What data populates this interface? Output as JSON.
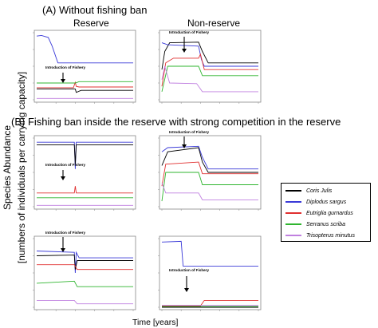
{
  "figure": {
    "section_a": "(A)  Without fishing ban",
    "section_b": "(B) Fishing ban inside the reserve with strong competition in the reserve",
    "col_reserve": "Reserve",
    "col_nonreserve": "Non-reserve",
    "ylabel_line1": "Species Abundance",
    "ylabel_line2": "[numbers of individuals per carrying capacity]",
    "xlabel": "Time [years]"
  },
  "colors": {
    "Coris Julis": "#000000",
    "Diplodus sargus": "#3a3ad8",
    "Eutriglia gurnardus": "#e03030",
    "Serranus scriba": "#2fb52f",
    "Trisopterus minutus": "#c080e0"
  },
  "chart_data": [
    {
      "type": "line",
      "panel": "A-reserve",
      "annotation": "Introduction of Fishery",
      "event_x": 2000,
      "xlim": [
        0,
        5000
      ],
      "ylim": [
        0,
        1
      ],
      "series": [
        {
          "name": "Diplodus sargus",
          "points": [
            [
              0,
              0.95
            ],
            [
              250,
              0.96
            ],
            [
              600,
              0.93
            ],
            [
              800,
              0.8
            ],
            [
              1100,
              0.55
            ],
            [
              5000,
              0.55
            ]
          ]
        },
        {
          "name": "Eutriglia gurnardus",
          "points": [
            [
              0,
              0.18
            ],
            [
              1900,
              0.18
            ],
            [
              2000,
              0.26
            ],
            [
              2050,
              0.2
            ],
            [
              2200,
              0.19
            ],
            [
              5000,
              0.19
            ]
          ]
        },
        {
          "name": "Serranus scriba",
          "points": [
            [
              0,
              0.25
            ],
            [
              2000,
              0.25
            ],
            [
              2200,
              0.27
            ],
            [
              5000,
              0.27
            ]
          ]
        },
        {
          "name": "Coris Julis",
          "points": [
            [
              0,
              0.16
            ],
            [
              2000,
              0.16
            ],
            [
              2050,
              0.11
            ],
            [
              2300,
              0.14
            ],
            [
              5000,
              0.14
            ]
          ]
        },
        {
          "name": "Trisopterus minutus",
          "points": [
            [
              0,
              0.02
            ],
            [
              5000,
              0.02
            ]
          ]
        }
      ]
    },
    {
      "type": "line",
      "panel": "A-nonreserve",
      "annotation": "Introduction of Fishery",
      "event_x": 2000,
      "xlim": [
        0,
        5000
      ],
      "ylim": [
        0,
        1
      ],
      "series": [
        {
          "name": "Coris Julis",
          "points": [
            [
              0,
              0.45
            ],
            [
              150,
              0.72
            ],
            [
              400,
              0.85
            ],
            [
              1900,
              0.86
            ],
            [
              2100,
              0.72
            ],
            [
              2400,
              0.55
            ],
            [
              5000,
              0.55
            ]
          ]
        },
        {
          "name": "Diplodus sargus",
          "points": [
            [
              0,
              0.85
            ],
            [
              300,
              0.82
            ],
            [
              1900,
              0.8
            ],
            [
              2050,
              0.6
            ],
            [
              2200,
              0.5
            ],
            [
              5000,
              0.5
            ]
          ]
        },
        {
          "name": "Eutriglia gurnardus",
          "points": [
            [
              0,
              0.2
            ],
            [
              200,
              0.55
            ],
            [
              600,
              0.62
            ],
            [
              1900,
              0.62
            ],
            [
              2000,
              0.68
            ],
            [
              2200,
              0.45
            ],
            [
              5000,
              0.45
            ]
          ]
        },
        {
          "name": "Serranus scriba",
          "points": [
            [
              0,
              0.12
            ],
            [
              300,
              0.5
            ],
            [
              1900,
              0.5
            ],
            [
              2100,
              0.36
            ],
            [
              5000,
              0.36
            ]
          ]
        },
        {
          "name": "Trisopterus minutus",
          "points": [
            [
              0,
              0.3
            ],
            [
              150,
              0.5
            ],
            [
              400,
              0.25
            ],
            [
              1800,
              0.24
            ],
            [
              2100,
              0.12
            ],
            [
              5000,
              0.12
            ]
          ]
        }
      ]
    },
    {
      "type": "line",
      "panel": "B1-reserve",
      "annotation": "Introduction of Fishery",
      "event_x": 2000,
      "xlim": [
        0,
        5000
      ],
      "ylim": [
        0,
        1
      ],
      "series": [
        {
          "name": "Diplodus sargus",
          "points": [
            [
              0,
              0.94
            ],
            [
              1950,
              0.94
            ],
            [
              2000,
              0.55
            ],
            [
              2050,
              0.94
            ],
            [
              5000,
              0.94
            ]
          ]
        },
        {
          "name": "Coris Julis",
          "points": [
            [
              0,
              0.9
            ],
            [
              1950,
              0.9
            ],
            [
              2000,
              0.62
            ],
            [
              2050,
              0.9
            ],
            [
              5000,
              0.9
            ]
          ]
        },
        {
          "name": "Eutriglia gurnardus",
          "points": [
            [
              0,
              0.2
            ],
            [
              1950,
              0.2
            ],
            [
              2000,
              0.3
            ],
            [
              2050,
              0.2
            ],
            [
              5000,
              0.2
            ]
          ]
        },
        {
          "name": "Serranus scriba",
          "points": [
            [
              0,
              0.13
            ],
            [
              5000,
              0.13
            ]
          ]
        },
        {
          "name": "Trisopterus minutus",
          "points": [
            [
              0,
              0.02
            ],
            [
              5000,
              0.02
            ]
          ]
        }
      ]
    },
    {
      "type": "line",
      "panel": "B1-nonreserve",
      "annotation": "Introduction of Fishery",
      "event_x": 2000,
      "xlim": [
        0,
        5000
      ],
      "ylim": [
        0,
        1
      ],
      "series": [
        {
          "name": "Diplodus sargus",
          "points": [
            [
              0,
              0.8
            ],
            [
              300,
              0.86
            ],
            [
              1900,
              0.88
            ],
            [
              2100,
              0.72
            ],
            [
              2400,
              0.55
            ],
            [
              5000,
              0.55
            ]
          ]
        },
        {
          "name": "Coris Julis",
          "points": [
            [
              0,
              0.6
            ],
            [
              300,
              0.8
            ],
            [
              1900,
              0.86
            ],
            [
              2100,
              0.65
            ],
            [
              2400,
              0.5
            ],
            [
              5000,
              0.5
            ]
          ]
        },
        {
          "name": "Eutriglia gurnardus",
          "points": [
            [
              0,
              0.3
            ],
            [
              200,
              0.62
            ],
            [
              1900,
              0.65
            ],
            [
              2100,
              0.48
            ],
            [
              5000,
              0.48
            ]
          ]
        },
        {
          "name": "Serranus scriba",
          "points": [
            [
              0,
              0.08
            ],
            [
              200,
              0.5
            ],
            [
              1900,
              0.5
            ],
            [
              2100,
              0.32
            ],
            [
              5000,
              0.32
            ]
          ]
        },
        {
          "name": "Trisopterus minutus",
          "points": [
            [
              0,
              0.35
            ],
            [
              200,
              0.2
            ],
            [
              1900,
              0.2
            ],
            [
              2100,
              0.1
            ],
            [
              5000,
              0.1
            ]
          ]
        }
      ]
    },
    {
      "type": "line",
      "panel": "B2-reserve",
      "annotation": "Introduction of Fishery",
      "event_x": 2000,
      "xlim": [
        0,
        5000
      ],
      "ylim": [
        0,
        1
      ],
      "series": [
        {
          "name": "Diplodus sargus",
          "points": [
            [
              0,
              0.82
            ],
            [
              1950,
              0.8
            ],
            [
              2000,
              0.5
            ],
            [
              2050,
              0.8
            ],
            [
              2200,
              0.72
            ],
            [
              5000,
              0.72
            ]
          ]
        },
        {
          "name": "Coris Julis",
          "points": [
            [
              0,
              0.75
            ],
            [
              1950,
              0.76
            ],
            [
              2000,
              0.55
            ],
            [
              2100,
              0.68
            ],
            [
              5000,
              0.68
            ]
          ]
        },
        {
          "name": "Eutriglia gurnardus",
          "points": [
            [
              0,
              0.62
            ],
            [
              1950,
              0.62
            ],
            [
              2100,
              0.55
            ],
            [
              5000,
              0.55
            ]
          ]
        },
        {
          "name": "Serranus scriba",
          "points": [
            [
              0,
              0.35
            ],
            [
              1950,
              0.38
            ],
            [
              2100,
              0.3
            ],
            [
              5000,
              0.3
            ]
          ]
        },
        {
          "name": "Trisopterus minutus",
          "points": [
            [
              0,
              0.1
            ],
            [
              1950,
              0.1
            ],
            [
              2100,
              0.05
            ],
            [
              5000,
              0.05
            ]
          ]
        }
      ]
    },
    {
      "type": "line",
      "panel": "B2-nonreserve",
      "annotation": "Introduction of Fishery",
      "event_x": 2000,
      "xlim": [
        0,
        5000
      ],
      "ylim": [
        0,
        1
      ],
      "series": [
        {
          "name": "Diplodus sargus",
          "points": [
            [
              0,
              0.95
            ],
            [
              1000,
              0.96
            ],
            [
              1100,
              0.6
            ],
            [
              5000,
              0.6
            ]
          ]
        },
        {
          "name": "Eutriglia gurnardus",
          "points": [
            [
              0,
              0.02
            ],
            [
              2000,
              0.02
            ],
            [
              2200,
              0.1
            ],
            [
              5000,
              0.1
            ]
          ]
        },
        {
          "name": "Serranus scriba",
          "points": [
            [
              0,
              0.01
            ],
            [
              5000,
              0.01
            ]
          ]
        },
        {
          "name": "Coris Julis",
          "points": [
            [
              0,
              0.0
            ],
            [
              5000,
              0.0
            ]
          ]
        },
        {
          "name": "Trisopterus minutus",
          "points": [
            [
              0,
              0.03
            ],
            [
              5000,
              0.03
            ]
          ]
        }
      ]
    }
  ],
  "legend": [
    "Coris Julis",
    "Diplodus sargus",
    "Eutriglia gurnardus",
    "Serranus scriba",
    "Trisopterus minutus"
  ]
}
